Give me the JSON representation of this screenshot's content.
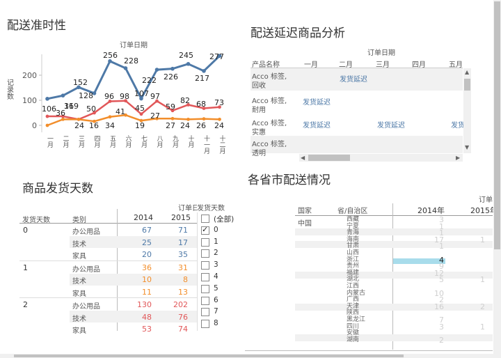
{
  "chart1": {
    "title": "配送准时性",
    "top_label": "订单日期",
    "ylabel": "记录数",
    "yticks": [
      "200",
      "100",
      "0"
    ]
  },
  "chart_data": {
    "type": "line",
    "categories": [
      "一月",
      "二月",
      "三月",
      "四月",
      "五月",
      "六月",
      "七月",
      "八月",
      "九月",
      "十月",
      "十一月",
      "十二月"
    ],
    "series": [
      {
        "color": "#4e79a7",
        "values": [
          106,
          119,
          152,
          128,
          256,
          228,
          107,
          222,
          226,
          245,
          217,
          277
        ]
      },
      {
        "color": "#e15759",
        "values": [
          36,
          36,
          24,
          50,
          96,
          98,
          45,
          97,
          59,
          82,
          68,
          73
        ]
      },
      {
        "color": "#f28e2b",
        "values": [
          0,
          24,
          24,
          16,
          34,
          41,
          19,
          27,
          27,
          24,
          26,
          24
        ]
      }
    ],
    "xlabel": "订单日期",
    "ylabel": "记录数",
    "ylim": [
      0,
      280
    ]
  },
  "delay": {
    "title": "配送延迟商品分析",
    "top_label": "订单日期",
    "col_header": "产品名称",
    "months": [
      "一月",
      "二月",
      "三月",
      "四月",
      "五月"
    ],
    "rows": [
      {
        "name1": "Acco 标签,",
        "name2": "回收",
        "c2": "发货延迟"
      },
      {
        "name1": "Acco 标签,",
        "name2": "耐用",
        "c1": "发货延迟"
      },
      {
        "name1": "Acco 标签,",
        "name2": "实惠",
        "c1": "发货延迟",
        "c3": "发货延迟",
        "c5": "发货"
      },
      {
        "name1": "Acco 标签,",
        "name2": "透明"
      }
    ]
  },
  "ship": {
    "title": "商品发货天数",
    "top_label": "订单日期",
    "headers": {
      "days": "发货天数",
      "category": "类别",
      "y2014": "2014",
      "y2015": "2015"
    },
    "groups": [
      {
        "day": "0",
        "rows": [
          {
            "cat": "办公用品",
            "a": "67",
            "b": "71"
          },
          {
            "cat": "技术",
            "a": "25",
            "b": "17"
          },
          {
            "cat": "家具",
            "a": "20",
            "b": "35"
          }
        ]
      },
      {
        "day": "1",
        "rows": [
          {
            "cat": "办公用品",
            "a": "36",
            "b": "31"
          },
          {
            "cat": "技术",
            "a": "10",
            "b": "8"
          },
          {
            "cat": "家具",
            "a": "11",
            "b": "13"
          }
        ]
      },
      {
        "day": "2",
        "rows": [
          {
            "cat": "办公用品",
            "a": "130",
            "b": "202"
          },
          {
            "cat": "技术",
            "a": "48",
            "b": "76"
          },
          {
            "cat": "家具",
            "a": "53",
            "b": "74"
          }
        ]
      }
    ]
  },
  "filter": {
    "title": "发货天数",
    "items": [
      {
        "label": "(全部)",
        "checked": false
      },
      {
        "label": "0",
        "checked": true
      },
      {
        "label": "1",
        "checked": false
      },
      {
        "label": "2",
        "checked": false
      },
      {
        "label": "3",
        "checked": false
      },
      {
        "label": "4",
        "checked": false
      },
      {
        "label": "5",
        "checked": false
      },
      {
        "label": "6",
        "checked": false
      },
      {
        "label": "7",
        "checked": false
      },
      {
        "label": "8",
        "checked": false
      }
    ]
  },
  "province": {
    "title": "各省市配送情况",
    "top_label": "订单",
    "headers": {
      "country": "国家",
      "province": "省/自治区",
      "y2014": "2014年",
      "y2015": "2015年"
    },
    "country": "中国",
    "rows": [
      {
        "name": "西藏",
        "a": "3",
        "b": ""
      },
      {
        "name": "宁夏",
        "a": "1",
        "b": ""
      },
      {
        "name": "青海",
        "a": "1",
        "b": ""
      },
      {
        "name": "海南",
        "a": "17",
        "b": "1"
      },
      {
        "name": "甘肃",
        "a": "1",
        "b": ""
      },
      {
        "name": "山西",
        "a": "",
        "b": ""
      },
      {
        "name": "浙江",
        "a": "4",
        "b": ""
      },
      {
        "name": "贵州",
        "a": "9",
        "b": ""
      },
      {
        "name": "福建",
        "a": "12",
        "b": ""
      },
      {
        "name": "湖北",
        "a": "5",
        "b": "1"
      },
      {
        "name": "江西",
        "a": "",
        "b": ""
      },
      {
        "name": "内蒙古",
        "a": "10",
        "b": ""
      },
      {
        "name": "广西",
        "a": "2",
        "b": ""
      },
      {
        "name": "天津",
        "a": "16",
        "b": "2"
      },
      {
        "name": "陕西",
        "a": "",
        "b": ""
      },
      {
        "name": "黑龙江",
        "a": "7",
        "b": ""
      },
      {
        "name": "四川",
        "a": "3",
        "b": "1"
      },
      {
        "name": "安徽",
        "a": "",
        "b": ""
      },
      {
        "name": "湖南",
        "a": "2",
        "b": ""
      }
    ]
  }
}
